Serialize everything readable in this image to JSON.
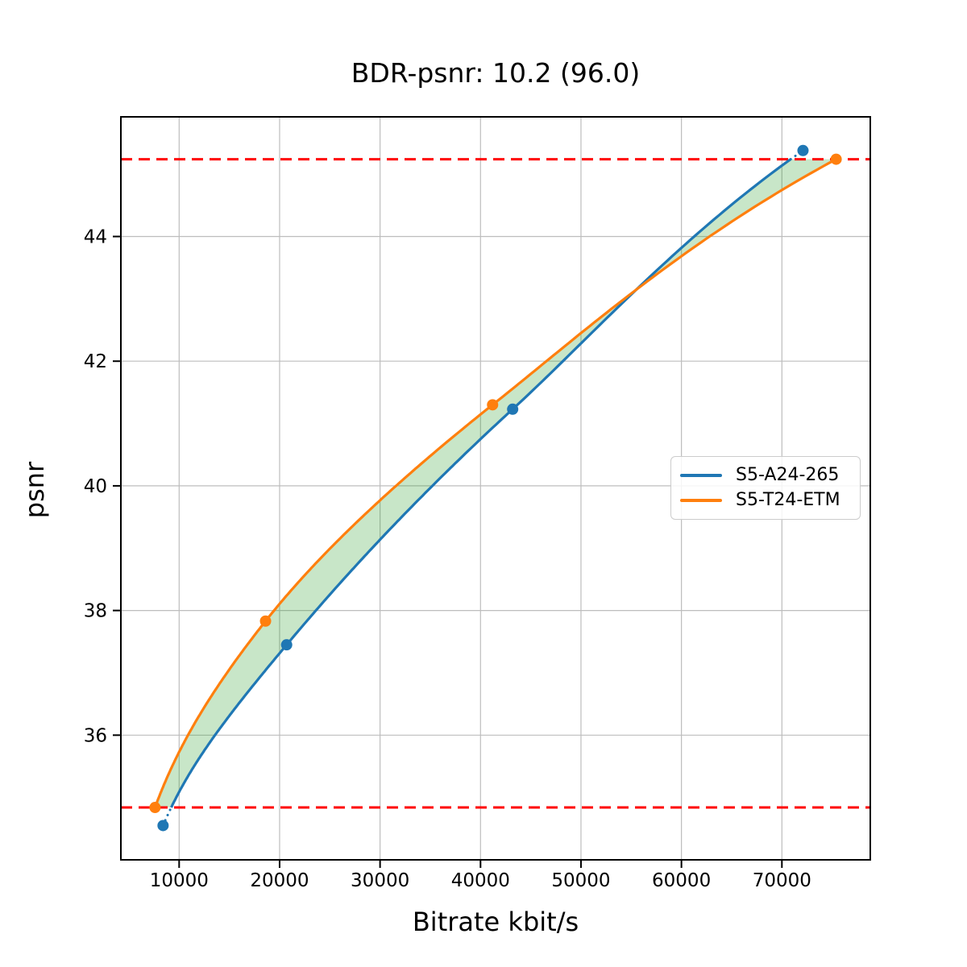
{
  "chart_data": {
    "type": "line",
    "title": "BDR-psnr: 10.2 (96.0)",
    "xlabel": "Bitrate kbit/s",
    "ylabel": "psnr",
    "xlim": [
      4200,
      78800
    ],
    "ylim": [
      34.0,
      45.92
    ],
    "grid": true,
    "legend_position": "center right",
    "xticks": {
      "values": [
        10000,
        20000,
        30000,
        40000,
        50000,
        60000,
        70000
      ],
      "labels": [
        "10000",
        "20000",
        "30000",
        "40000",
        "50000",
        "60000",
        "70000"
      ]
    },
    "yticks": {
      "values": [
        36,
        38,
        40,
        42,
        44
      ],
      "labels": [
        "36",
        "38",
        "40",
        "42",
        "44"
      ]
    },
    "series": [
      {
        "name": "S5-A24-265",
        "color": "#1f77b4",
        "points": [
          [
            8400,
            34.55
          ],
          [
            20700,
            37.45
          ],
          [
            43200,
            41.23
          ],
          [
            72100,
            45.38
          ]
        ]
      },
      {
        "name": "S5-T24-ETM",
        "color": "#ff7f0e",
        "points": [
          [
            7600,
            34.84
          ],
          [
            18600,
            37.83
          ],
          [
            41200,
            41.3
          ],
          [
            75400,
            45.24
          ]
        ]
      }
    ],
    "integration_bounds": {
      "psnr_low": 34.84,
      "psnr_high": 45.24,
      "line_color": "#ff0000",
      "line_style": "dashed"
    },
    "fill_between": {
      "color": "#2ca02c",
      "opacity": 0.26
    },
    "interpolation": "pchip-log-rate"
  }
}
